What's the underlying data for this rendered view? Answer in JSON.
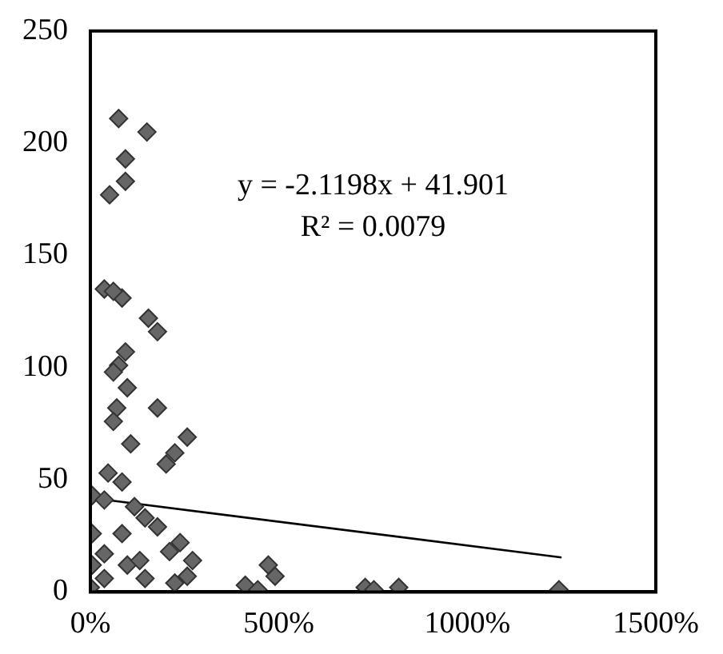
{
  "chart_data": {
    "type": "scatter",
    "annotations": [
      "y = -2.1198x + 41.901",
      "R² = 0.0079"
    ],
    "xlim": [
      0,
      1500
    ],
    "xticks": [
      {
        "value": 0,
        "label": "0%"
      },
      {
        "value": 500,
        "label": "500%"
      },
      {
        "value": 1000,
        "label": "1000%"
      },
      {
        "value": 1500,
        "label": "1500%"
      }
    ],
    "ylim": [
      0,
      250
    ],
    "yticks": [
      0,
      50,
      100,
      150,
      200,
      250
    ],
    "grid": false,
    "legend": false,
    "marker": "diamond",
    "series": [
      {
        "color": "#666666",
        "x": [
          75,
          150,
          93,
          93,
          51,
          37,
          84,
          61,
          154,
          178,
          93,
          75,
          61,
          98,
          70,
          61,
          178,
          107,
          257,
          224,
          201,
          5,
          47,
          84,
          37,
          117,
          145,
          178,
          84,
          5,
          37,
          5,
          98,
          131,
          210,
          238,
          271,
          257,
          224,
          145,
          37,
          0,
          411,
          444,
          472,
          490,
          729,
          752,
          818,
          1243
        ],
        "values": [
          211,
          205,
          193,
          183,
          177,
          135,
          131,
          134,
          122,
          116,
          107,
          101,
          98,
          91,
          82,
          76,
          82,
          66,
          69,
          62,
          57,
          43,
          53,
          49,
          41,
          38,
          33,
          29,
          26,
          26,
          17,
          12,
          12,
          14,
          18,
          22,
          14,
          7,
          4,
          6,
          6,
          2,
          3,
          1,
          12,
          7,
          2,
          1,
          2,
          1
        ]
      },
      {
        "type": "line",
        "color": "#000000",
        "marker": "none",
        "x": [
          0,
          1250
        ],
        "values": [
          41.9,
          15.4
        ]
      }
    ]
  }
}
